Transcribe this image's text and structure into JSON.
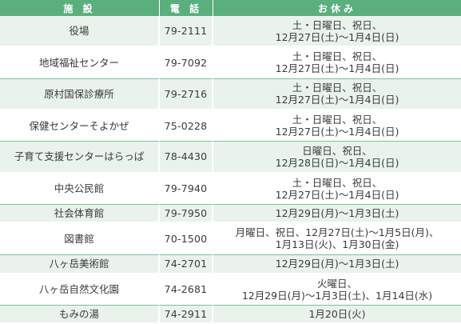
{
  "header": {
    "facility": "施 設",
    "phone": "電 話",
    "closed": "お休み"
  },
  "rows": [
    {
      "name": "役場",
      "phone": "79-2111",
      "closed": [
        "土・日曜日、祝日、",
        "12月27日(土)～1月4日(日)"
      ]
    },
    {
      "name": "地域福祉センター",
      "phone": "79-7092",
      "closed": [
        "土・日曜日、祝日、",
        "12月27日(土)～1月4日(日)"
      ]
    },
    {
      "name": "原村国保診療所",
      "phone": "79-2716",
      "closed": [
        "土・日曜日、祝日、",
        "12月27日(土)～1月4日(日)"
      ]
    },
    {
      "name": "保健センターそよかぜ",
      "phone": "75-0228",
      "closed": [
        "土・日曜日、祝日、",
        "12月27日(土)～1月4日(日)"
      ]
    },
    {
      "name": "子育て支援センターはらっぱ",
      "phone": "78-4430",
      "closed": [
        "日曜日、祝日、",
        "12月28日(日)～1月4日(日)"
      ]
    },
    {
      "name": "中央公民館",
      "phone": "79-7940",
      "closed": [
        "土・日曜日、祝日、",
        "12月27日(土)～1月4日(日)"
      ]
    },
    {
      "name": "社会体育館",
      "phone": "79-7950",
      "closed": [
        "12月29日(月)～1月3日(土)"
      ]
    },
    {
      "name": "図書館",
      "phone": "70-1500",
      "closed": [
        "月曜日、祝日、12月27日(土)～1月5日(月)、",
        "1月13日(火)、1月30日(金)"
      ]
    },
    {
      "name": "八ヶ岳美術館",
      "phone": "74-2701",
      "closed": [
        "12月29日(月)～1月3日(土)"
      ]
    },
    {
      "name": "八ヶ岳自然文化園",
      "phone": "74-2681",
      "closed": [
        "火曜日、",
        "12月29日(月)～1月3日(土)、1月14日(水)"
      ]
    },
    {
      "name": "もみの湯",
      "phone": "74-2911",
      "closed": [
        "1月20日(火)"
      ]
    }
  ]
}
